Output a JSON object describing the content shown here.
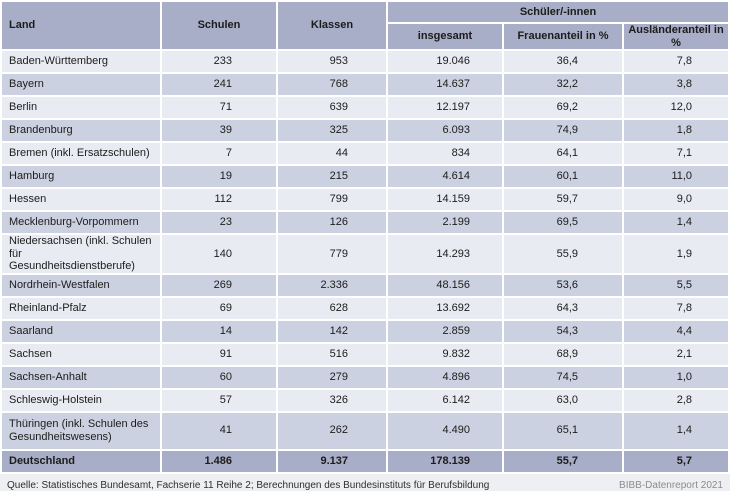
{
  "table": {
    "columns": [
      "Land",
      "Schulen",
      "Klassen"
    ],
    "group_header": "Schüler/-innen",
    "sub_columns": [
      "insgesamt",
      "Frauenanteil in %",
      "Ausländeranteil in %"
    ],
    "rows": [
      {
        "land": "Baden-Württemberg",
        "schulen": "233",
        "klassen": "953",
        "insgesamt": "19.046",
        "frauenanteil": "36,4",
        "auslaenderanteil": "7,8"
      },
      {
        "land": "Bayern",
        "schulen": "241",
        "klassen": "768",
        "insgesamt": "14.637",
        "frauenanteil": "32,2",
        "auslaenderanteil": "3,8"
      },
      {
        "land": "Berlin",
        "schulen": "71",
        "klassen": "639",
        "insgesamt": "12.197",
        "frauenanteil": "69,2",
        "auslaenderanteil": "12,0"
      },
      {
        "land": "Brandenburg",
        "schulen": "39",
        "klassen": "325",
        "insgesamt": "6.093",
        "frauenanteil": "74,9",
        "auslaenderanteil": "1,8"
      },
      {
        "land": "Bremen (inkl. Ersatzschulen)",
        "schulen": "7",
        "klassen": "44",
        "insgesamt": "834",
        "frauenanteil": "64,1",
        "auslaenderanteil": "7,1"
      },
      {
        "land": "Hamburg",
        "schulen": "19",
        "klassen": "215",
        "insgesamt": "4.614",
        "frauenanteil": "60,1",
        "auslaenderanteil": "11,0"
      },
      {
        "land": "Hessen",
        "schulen": "112",
        "klassen": "799",
        "insgesamt": "14.159",
        "frauenanteil": "59,7",
        "auslaenderanteil": "9,0"
      },
      {
        "land": "Mecklenburg-Vorpommern",
        "schulen": "23",
        "klassen": "126",
        "insgesamt": "2.199",
        "frauenanteil": "69,5",
        "auslaenderanteil": "1,4"
      },
      {
        "land": "Niedersachsen (inkl. Schulen für\nGesundheitsdienstberufe)",
        "schulen": "140",
        "klassen": "779",
        "insgesamt": "14.293",
        "frauenanteil": "55,9",
        "auslaenderanteil": "1,9"
      },
      {
        "land": "Nordrhein-Westfalen",
        "schulen": "269",
        "klassen": "2.336",
        "insgesamt": "48.156",
        "frauenanteil": "53,6",
        "auslaenderanteil": "5,5"
      },
      {
        "land": "Rheinland-Pfalz",
        "schulen": "69",
        "klassen": "628",
        "insgesamt": "13.692",
        "frauenanteil": "64,3",
        "auslaenderanteil": "7,8"
      },
      {
        "land": "Saarland",
        "schulen": "14",
        "klassen": "142",
        "insgesamt": "2.859",
        "frauenanteil": "54,3",
        "auslaenderanteil": "4,4"
      },
      {
        "land": "Sachsen",
        "schulen": "91",
        "klassen": "516",
        "insgesamt": "9.832",
        "frauenanteil": "68,9",
        "auslaenderanteil": "2,1"
      },
      {
        "land": "Sachsen-Anhalt",
        "schulen": "60",
        "klassen": "279",
        "insgesamt": "4.896",
        "frauenanteil": "74,5",
        "auslaenderanteil": "1,0"
      },
      {
        "land": "Schleswig-Holstein",
        "schulen": "57",
        "klassen": "326",
        "insgesamt": "6.142",
        "frauenanteil": "63,0",
        "auslaenderanteil": "2,8"
      },
      {
        "land": "Thüringen (inkl. Schulen des\nGesundheitswesens)",
        "schulen": "41",
        "klassen": "262",
        "insgesamt": "4.490",
        "frauenanteil": "65,1",
        "auslaenderanteil": "1,4"
      }
    ],
    "total": {
      "land": "Deutschland",
      "schulen": "1.486",
      "klassen": "9.137",
      "insgesamt": "178.139",
      "frauenanteil": "55,7",
      "auslaenderanteil": "5,7"
    }
  },
  "footer": {
    "source": "Quelle: Statistisches Bundesamt, Fachserie 11 Reihe 2; Berechnungen des Bundesinstituts für Berufsbildung",
    "report": "BIBB-Datenreport 2021"
  },
  "colors": {
    "header-bg": "#a8adc8",
    "row-light": "#e9ebf3",
    "row-dark": "#ccd1e1",
    "footer-bg": "#eeeff2",
    "text": "#1c1c1a"
  }
}
